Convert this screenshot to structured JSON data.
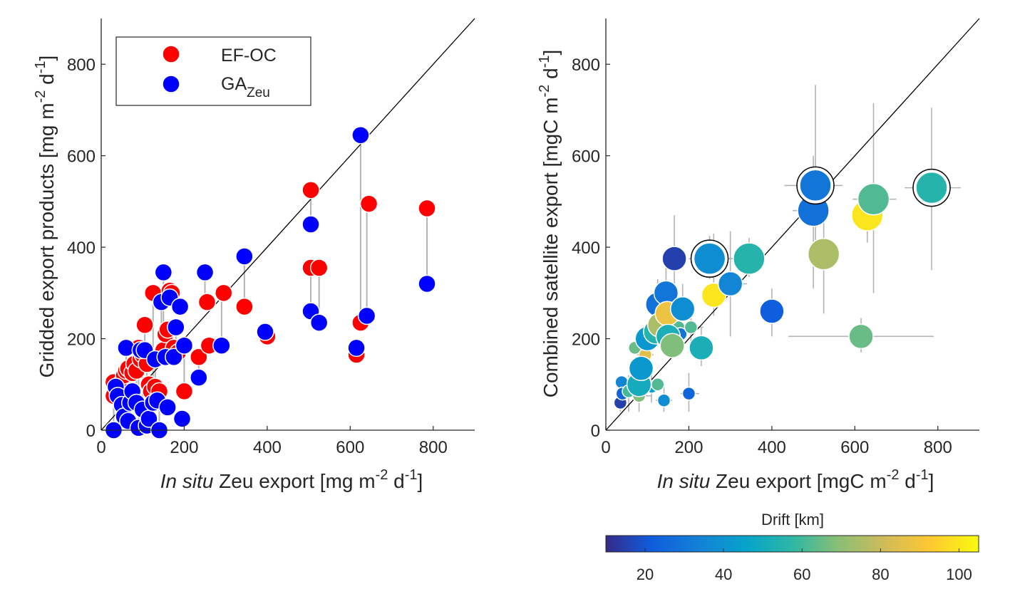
{
  "chart_data": [
    {
      "type": "scatter",
      "xlabel_italic": "In situ",
      "xlabel_rest": " Zeu export [mg m",
      "xlabel_sup1": "-2",
      "xlabel_mid": " d",
      "xlabel_sup2": "-1",
      "xlabel_end": "]",
      "ylabel_main": "Gridded export products [mg m",
      "ylabel_sup1": "-2",
      "ylabel_mid": " d",
      "ylabel_sup2": "-1",
      "ylabel_end": "]",
      "xlim": [
        0,
        900
      ],
      "ylim": [
        0,
        900
      ],
      "xticks": [
        0,
        200,
        400,
        600,
        800
      ],
      "yticks": [
        0,
        200,
        400,
        600,
        800
      ],
      "grid": false,
      "legend_position": "top-left",
      "colors": {
        "ef_oc": "#ff0000",
        "ga": "#0000ff",
        "errorbar": "#b3b3b3",
        "line": "#000000"
      },
      "series": [
        {
          "name": "EF-OC",
          "points": [
            [
              30,
              105
            ],
            [
              30,
              75
            ],
            [
              40,
              80
            ],
            [
              45,
              100
            ],
            [
              55,
              120
            ],
            [
              60,
              130
            ],
            [
              65,
              135
            ],
            [
              75,
              125
            ],
            [
              80,
              145
            ],
            [
              85,
              130
            ],
            [
              90,
              180
            ],
            [
              95,
              155
            ],
            [
              100,
              165
            ],
            [
              105,
              230
            ],
            [
              110,
              145
            ],
            [
              115,
              100
            ],
            [
              120,
              85
            ],
            [
              125,
              300
            ],
            [
              130,
              95
            ],
            [
              140,
              85
            ],
            [
              150,
              175
            ],
            [
              155,
              210
            ],
            [
              160,
              220
            ],
            [
              165,
              305
            ],
            [
              170,
              300
            ],
            [
              175,
              180
            ],
            [
              185,
              170
            ],
            [
              200,
              85
            ],
            [
              235,
              160
            ],
            [
              255,
              280
            ],
            [
              260,
              185
            ],
            [
              295,
              300
            ],
            [
              345,
              270
            ],
            [
              400,
              205
            ],
            [
              505,
              525
            ],
            [
              505,
              355
            ],
            [
              525,
              355
            ],
            [
              615,
              165
            ],
            [
              625,
              235
            ],
            [
              645,
              495
            ],
            [
              785,
              485
            ]
          ]
        },
        {
          "name": "GA",
          "subscript": "Zeu",
          "points": [
            [
              30,
              0
            ],
            [
              35,
              95
            ],
            [
              40,
              75
            ],
            [
              50,
              55
            ],
            [
              55,
              30
            ],
            [
              60,
              180
            ],
            [
              65,
              20
            ],
            [
              70,
              60
            ],
            [
              75,
              85
            ],
            [
              85,
              60
            ],
            [
              90,
              5
            ],
            [
              95,
              175
            ],
            [
              100,
              45
            ],
            [
              105,
              175
            ],
            [
              110,
              10
            ],
            [
              115,
              25
            ],
            [
              125,
              60
            ],
            [
              130,
              155
            ],
            [
              135,
              65
            ],
            [
              140,
              0
            ],
            [
              145,
              280
            ],
            [
              150,
              345
            ],
            [
              155,
              160
            ],
            [
              160,
              50
            ],
            [
              165,
              290
            ],
            [
              175,
              160
            ],
            [
              180,
              225
            ],
            [
              190,
              270
            ],
            [
              195,
              25
            ],
            [
              200,
              185
            ],
            [
              235,
              115
            ],
            [
              250,
              345
            ],
            [
              290,
              185
            ],
            [
              345,
              380
            ],
            [
              395,
              215
            ],
            [
              505,
              450
            ],
            [
              505,
              260
            ],
            [
              525,
              235
            ],
            [
              615,
              180
            ],
            [
              625,
              645
            ],
            [
              640,
              250
            ],
            [
              785,
              320
            ]
          ]
        }
      ],
      "links": [
        [
          30,
          0,
          105
        ],
        [
          35,
          95,
          75
        ],
        [
          40,
          75,
          80
        ],
        [
          50,
          55,
          100
        ],
        [
          55,
          30,
          120
        ],
        [
          60,
          180,
          130
        ],
        [
          65,
          20,
          135
        ],
        [
          70,
          60,
          125
        ],
        [
          85,
          60,
          145
        ],
        [
          90,
          5,
          180
        ],
        [
          95,
          175,
          155
        ],
        [
          100,
          45,
          165
        ],
        [
          105,
          175,
          230
        ],
        [
          110,
          10,
          145
        ],
        [
          115,
          25,
          100
        ],
        [
          125,
          60,
          300
        ],
        [
          130,
          155,
          95
        ],
        [
          140,
          0,
          85
        ],
        [
          145,
          280,
          175
        ],
        [
          150,
          345,
          210
        ],
        [
          155,
          160,
          220
        ],
        [
          165,
          290,
          305
        ],
        [
          175,
          160,
          180
        ],
        [
          180,
          225,
          170
        ],
        [
          200,
          185,
          85
        ],
        [
          235,
          115,
          160
        ],
        [
          250,
          345,
          280
        ],
        [
          290,
          185,
          300
        ],
        [
          345,
          380,
          270
        ],
        [
          395,
          215,
          205
        ],
        [
          505,
          450,
          525
        ],
        [
          505,
          260,
          355
        ],
        [
          525,
          235,
          355
        ],
        [
          615,
          180,
          165
        ],
        [
          625,
          645,
          235
        ],
        [
          640,
          250,
          495
        ],
        [
          785,
          320,
          485
        ]
      ]
    },
    {
      "type": "scatter",
      "xlabel_italic": "In situ",
      "xlabel_rest": " Zeu export [mgC m",
      "xlabel_sup1": "-2",
      "xlabel_mid": " d",
      "xlabel_sup2": "-1",
      "xlabel_end": "]",
      "ylabel_main": "Combined satellite export [mgC m",
      "ylabel_sup1": "-2",
      "ylabel_mid": " d",
      "ylabel_sup2": "-1",
      "ylabel_end": "]",
      "xlim": [
        0,
        900
      ],
      "ylim": [
        0,
        900
      ],
      "xticks": [
        0,
        200,
        400,
        600,
        800
      ],
      "yticks": [
        0,
        200,
        400,
        600,
        800
      ],
      "grid": false,
      "colorbar": {
        "label": "Drift [km]",
        "min": 10,
        "max": 105,
        "ticks": [
          20,
          40,
          60,
          80,
          100
        ],
        "colormap": "parula"
      },
      "points": [
        {
          "x": 35,
          "y": 60,
          "drift": 15,
          "size": "small"
        },
        {
          "x": 38,
          "y": 105,
          "drift": 35,
          "size": "small"
        },
        {
          "x": 40,
          "y": 80,
          "drift": 25,
          "size": "small"
        },
        {
          "x": 55,
          "y": 85,
          "drift": 60,
          "size": "small"
        },
        {
          "x": 70,
          "y": 180,
          "drift": 65,
          "size": "small"
        },
        {
          "x": 75,
          "y": 140,
          "drift": 45,
          "size": "small"
        },
        {
          "x": 80,
          "y": 100,
          "drift": 50,
          "size": "medium"
        },
        {
          "x": 80,
          "y": 75,
          "drift": 68,
          "size": "small"
        },
        {
          "x": 85,
          "y": 135,
          "drift": 42,
          "size": "medium"
        },
        {
          "x": 95,
          "y": 165,
          "drift": 85,
          "size": "small"
        },
        {
          "x": 100,
          "y": 200,
          "drift": 42,
          "size": "medium"
        },
        {
          "x": 105,
          "y": 210,
          "drift": 38,
          "size": "small"
        },
        {
          "x": 110,
          "y": 95,
          "drift": 45,
          "size": "small"
        },
        {
          "x": 120,
          "y": 215,
          "drift": 55,
          "size": "medium"
        },
        {
          "x": 125,
          "y": 100,
          "drift": 62,
          "size": "small"
        },
        {
          "x": 125,
          "y": 275,
          "drift": 28,
          "size": "medium"
        },
        {
          "x": 130,
          "y": 230,
          "drift": 75,
          "size": "medium"
        },
        {
          "x": 140,
          "y": 65,
          "drift": 38,
          "size": "small"
        },
        {
          "x": 145,
          "y": 300,
          "drift": 30,
          "size": "medium"
        },
        {
          "x": 148,
          "y": 255,
          "drift": 88,
          "size": "medium"
        },
        {
          "x": 150,
          "y": 205,
          "drift": 52,
          "size": "medium"
        },
        {
          "x": 160,
          "y": 185,
          "drift": 68,
          "size": "medium"
        },
        {
          "x": 165,
          "y": 375,
          "drift": 15,
          "size": "medium"
        },
        {
          "x": 175,
          "y": 225,
          "drift": 62,
          "size": "small"
        },
        {
          "x": 180,
          "y": 210,
          "drift": 30,
          "size": "small"
        },
        {
          "x": 185,
          "y": 265,
          "drift": 38,
          "size": "medium"
        },
        {
          "x": 200,
          "y": 80,
          "drift": 25,
          "size": "small"
        },
        {
          "x": 205,
          "y": 225,
          "drift": 62,
          "size": "small"
        },
        {
          "x": 230,
          "y": 180,
          "drift": 52,
          "size": "medium"
        },
        {
          "x": 250,
          "y": 375,
          "drift": 38,
          "size": "large",
          "ring": true
        },
        {
          "x": 260,
          "y": 295,
          "drift": 100,
          "size": "medium"
        },
        {
          "x": 300,
          "y": 320,
          "drift": 35,
          "size": "medium"
        },
        {
          "x": 345,
          "y": 375,
          "drift": 55,
          "size": "large"
        },
        {
          "x": 400,
          "y": 260,
          "drift": 22,
          "size": "medium"
        },
        {
          "x": 500,
          "y": 480,
          "drift": 28,
          "size": "large"
        },
        {
          "x": 505,
          "y": 535,
          "drift": 30,
          "size": "large",
          "ring": true
        },
        {
          "x": 525,
          "y": 385,
          "drift": 75,
          "size": "large"
        },
        {
          "x": 615,
          "y": 205,
          "drift": 65,
          "size": "medium"
        },
        {
          "x": 630,
          "y": 470,
          "drift": 100,
          "size": "large"
        },
        {
          "x": 645,
          "y": 505,
          "drift": 62,
          "size": "large"
        },
        {
          "x": 785,
          "y": 530,
          "drift": 55,
          "size": "large",
          "ring": true
        }
      ],
      "errorbars": [
        {
          "x": 35,
          "y": 60,
          "xerr": [
            25,
            50
          ],
          "yerr": [
            40,
            80
          ]
        },
        {
          "x": 55,
          "y": 85,
          "xerr": [
            40,
            75
          ],
          "yerr": [
            40,
            120
          ]
        },
        {
          "x": 80,
          "y": 75,
          "xerr": [
            60,
            110
          ],
          "yerr": [
            40,
            120
          ]
        },
        {
          "x": 95,
          "y": 165,
          "xerr": [
            75,
            115
          ],
          "yerr": [
            120,
            210
          ]
        },
        {
          "x": 110,
          "y": 95,
          "xerr": [
            90,
            135
          ],
          "yerr": [
            60,
            140
          ]
        },
        {
          "x": 125,
          "y": 275,
          "xerr": [
            100,
            150
          ],
          "yerr": [
            220,
            330
          ]
        },
        {
          "x": 140,
          "y": 65,
          "xerr": [
            120,
            160
          ],
          "yerr": [
            40,
            100
          ]
        },
        {
          "x": 145,
          "y": 300,
          "xerr": [
            120,
            175
          ],
          "yerr": [
            250,
            355
          ]
        },
        {
          "x": 165,
          "y": 375,
          "xerr": [
            135,
            190
          ],
          "yerr": [
            240,
            470
          ]
        },
        {
          "x": 185,
          "y": 265,
          "xerr": [
            160,
            215
          ],
          "yerr": [
            220,
            320
          ]
        },
        {
          "x": 200,
          "y": 80,
          "xerr": [
            180,
            225
          ],
          "yerr": [
            40,
            125
          ]
        },
        {
          "x": 205,
          "y": 225,
          "xerr": [
            180,
            235
          ],
          "yerr": [
            180,
            270
          ]
        },
        {
          "x": 230,
          "y": 180,
          "xerr": [
            210,
            255
          ],
          "yerr": [
            140,
            225
          ]
        },
        {
          "x": 250,
          "y": 375,
          "xerr": [
            200,
            300
          ],
          "yerr": [
            330,
            425
          ]
        },
        {
          "x": 260,
          "y": 295,
          "xerr": [
            235,
            285
          ],
          "yerr": [
            250,
            430
          ]
        },
        {
          "x": 300,
          "y": 320,
          "xerr": [
            255,
            340
          ],
          "yerr": [
            205,
            435
          ]
        },
        {
          "x": 345,
          "y": 375,
          "xerr": [
            300,
            380
          ],
          "yerr": [
            335,
            420
          ]
        },
        {
          "x": 400,
          "y": 260,
          "xerr": [
            370,
            420
          ],
          "yerr": [
            205,
            310
          ]
        },
        {
          "x": 500,
          "y": 480,
          "xerr": [
            450,
            540
          ],
          "yerr": [
            310,
            600
          ]
        },
        {
          "x": 505,
          "y": 535,
          "xerr": [
            430,
            570
          ],
          "yerr": [
            410,
            755
          ]
        },
        {
          "x": 525,
          "y": 385,
          "xerr": [
            490,
            560
          ],
          "yerr": [
            255,
            510
          ]
        },
        {
          "x": 615,
          "y": 205,
          "xerr": [
            440,
            790
          ],
          "yerr": [
            170,
            245
          ]
        },
        {
          "x": 630,
          "y": 470,
          "xerr": [
            600,
            660
          ],
          "yerr": [
            410,
            530
          ]
        },
        {
          "x": 645,
          "y": 505,
          "xerr": [
            595,
            700
          ],
          "yerr": [
            300,
            715
          ]
        },
        {
          "x": 785,
          "y": 530,
          "xerr": [
            720,
            855
          ],
          "yerr": [
            350,
            705
          ]
        }
      ]
    }
  ]
}
